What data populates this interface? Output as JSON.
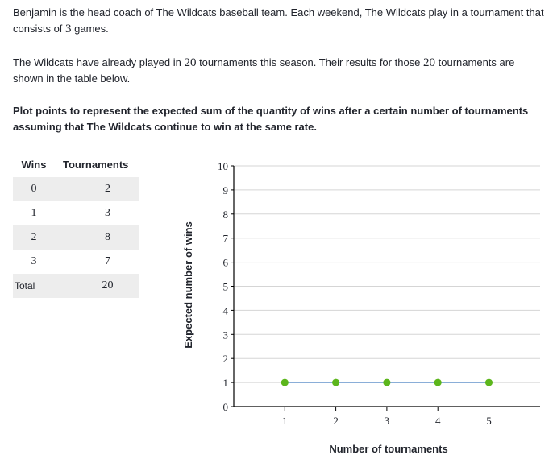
{
  "problem": {
    "p1_a": "Benjamin is the head coach of The Wildcats baseball team. Each weekend, The Wildcats play in a tournament that consists of ",
    "p1_num": "3",
    "p1_b": " games.",
    "p2_a": "The Wildcats have already played in ",
    "p2_num1": "20",
    "p2_b": " tournaments this season. Their results for those ",
    "p2_num2": "20",
    "p2_c": " tournaments are shown in the table below.",
    "p3": "Plot points to represent the expected sum of the quantity of wins after a certain number of tournaments assuming that The Wildcats continue to win at the same rate."
  },
  "table": {
    "headers": [
      "Wins",
      "Tournaments"
    ],
    "rows": [
      {
        "wins": "0",
        "tournaments": "2"
      },
      {
        "wins": "1",
        "tournaments": "3"
      },
      {
        "wins": "2",
        "tournaments": "8"
      },
      {
        "wins": "3",
        "tournaments": "7"
      }
    ],
    "total_label": "Total",
    "total_value": "20"
  },
  "chart_data": {
    "type": "scatter",
    "xlabel": "Number of tournaments",
    "ylabel": "Expected number of wins",
    "xlim": [
      0,
      5
    ],
    "ylim": [
      0,
      10
    ],
    "x_ticks": [
      "1",
      "2",
      "3",
      "4",
      "5"
    ],
    "y_ticks": [
      "0",
      "1",
      "2",
      "3",
      "4",
      "5",
      "6",
      "7",
      "8",
      "9",
      "10"
    ],
    "grid": true,
    "connected": true,
    "series": [
      {
        "points": [
          {
            "x": 1,
            "y": 1
          },
          {
            "x": 2,
            "y": 1
          },
          {
            "x": 3,
            "y": 1
          },
          {
            "x": 4,
            "y": 1
          },
          {
            "x": 5,
            "y": 1
          }
        ]
      }
    ],
    "colors": {
      "point": "#5cb61c",
      "line": "#7ba4d4",
      "grid": "#d5d5d5",
      "axis": "#000000"
    }
  }
}
